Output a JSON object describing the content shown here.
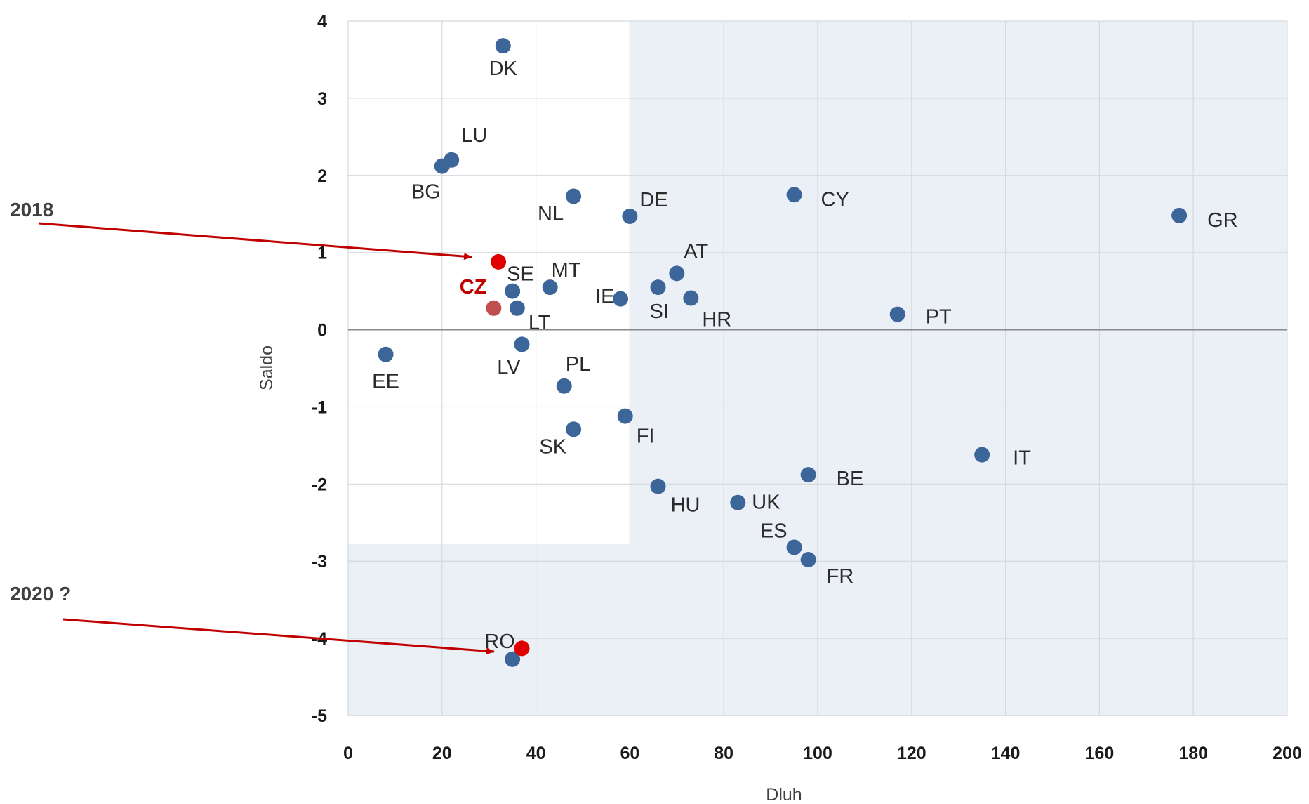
{
  "chart_data": {
    "type": "scatter",
    "xlabel": "Dluh",
    "ylabel": "Saldo",
    "xlim": [
      0,
      200
    ],
    "ylim": [
      -5,
      4
    ],
    "xticks": [
      "0",
      "20",
      "40",
      "60",
      "80",
      "100",
      "120",
      "140",
      "160",
      "180",
      "200"
    ],
    "yticks": [
      "4",
      "3",
      "2",
      "1",
      "0",
      "-1",
      "-2",
      "-3",
      "-4",
      "-5"
    ],
    "grid": true,
    "shaded_regions": [
      {
        "x": [
          60,
          200
        ],
        "y": [
          -5,
          4
        ],
        "color": "#eaf0f6"
      },
      {
        "x": [
          0,
          200
        ],
        "y": [
          -5,
          -2.78
        ],
        "color": "#eaf0f6"
      }
    ],
    "colors": {
      "point": "#3c659a",
      "highlight_point": "#c0504d",
      "annotation": "#e00000",
      "arrow": "#c00000"
    },
    "points": [
      {
        "label": "DK",
        "x": 33,
        "y": 3.68
      },
      {
        "label": "LU",
        "x": 22,
        "y": 2.2
      },
      {
        "label": "BG",
        "x": 20,
        "y": 2.12
      },
      {
        "label": "NL",
        "x": 48,
        "y": 1.73
      },
      {
        "label": "DE",
        "x": 60,
        "y": 1.47
      },
      {
        "label": "CY",
        "x": 95,
        "y": 1.75
      },
      {
        "label": "GR",
        "x": 177,
        "y": 1.48
      },
      {
        "label": "AT",
        "x": 70,
        "y": 0.73
      },
      {
        "label": "SE",
        "x": 35,
        "y": 0.5
      },
      {
        "label": "MT",
        "x": 43,
        "y": 0.55
      },
      {
        "label": "IE",
        "x": 58,
        "y": 0.4
      },
      {
        "label": "SI",
        "x": 66,
        "y": 0.55
      },
      {
        "label": "HR",
        "x": 73,
        "y": 0.41
      },
      {
        "label": "LT",
        "x": 36,
        "y": 0.28
      },
      {
        "label": "CZ",
        "x": 31,
        "y": 0.28,
        "highlight": true
      },
      {
        "label": "PT",
        "x": 117,
        "y": 0.2
      },
      {
        "label": "EE",
        "x": 8,
        "y": -0.32
      },
      {
        "label": "LV",
        "x": 37,
        "y": -0.19
      },
      {
        "label": "PL",
        "x": 46,
        "y": -0.73
      },
      {
        "label": "FI",
        "x": 59,
        "y": -1.12
      },
      {
        "label": "SK",
        "x": 48,
        "y": -1.29
      },
      {
        "label": "IT",
        "x": 135,
        "y": -1.62
      },
      {
        "label": "BE",
        "x": 98,
        "y": -1.88
      },
      {
        "label": "HU",
        "x": 66,
        "y": -2.03
      },
      {
        "label": "UK",
        "x": 83,
        "y": -2.24
      },
      {
        "label": "ES",
        "x": 95,
        "y": -2.82
      },
      {
        "label": "FR",
        "x": 98,
        "y": -2.98
      },
      {
        "label": "RO",
        "x": 35,
        "y": -4.27
      }
    ],
    "annotations": [
      {
        "text": "2018",
        "x": 32,
        "y": 0.88
      },
      {
        "text": "2020 ?",
        "x": 37,
        "y": -4.13
      }
    ]
  }
}
